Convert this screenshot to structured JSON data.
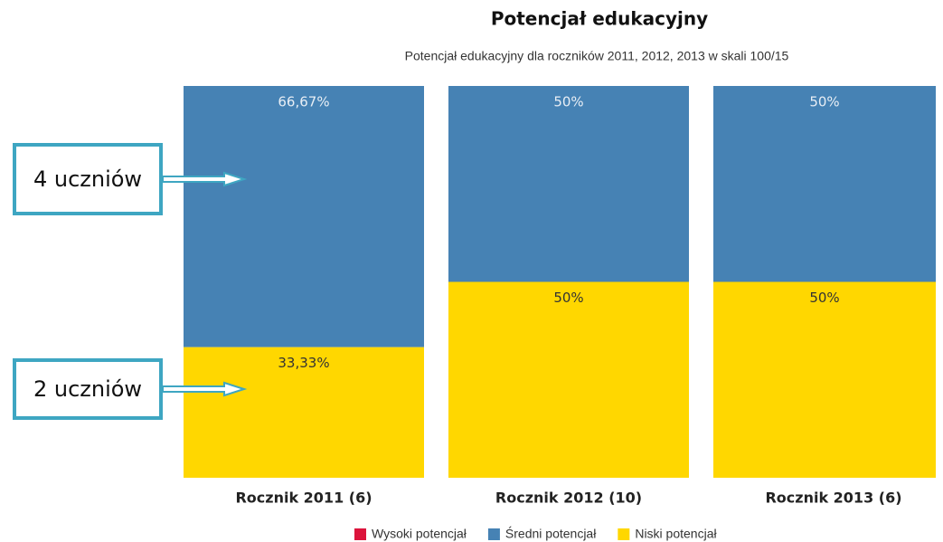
{
  "chart_data": {
    "type": "stacked_bar_100",
    "title": "Potencjał edukacyjny",
    "subtitle": "Potencjał edukacyjny dla roczników 2011, 2012, 2013 w skali 100/15",
    "categories": [
      "Rocznik 2011 (6)",
      "Rocznik 2012 (10)",
      "Rocznik 2013 (6)"
    ],
    "series": [
      {
        "name": "Wysoki potencjał",
        "color": "#dc143c",
        "values": [
          0,
          0,
          0
        ]
      },
      {
        "name": "Średni potencjał",
        "color": "#4682b4",
        "values": [
          66.67,
          50,
          50
        ],
        "value_labels": [
          "66,67%",
          "50%",
          "50%"
        ]
      },
      {
        "name": "Niski potencjał",
        "color": "#ffd700",
        "values": [
          33.33,
          50,
          50
        ],
        "value_labels": [
          "33,33%",
          "50%",
          "50%"
        ]
      }
    ],
    "annotations": [
      "4 uczniów",
      "2 uczniów"
    ]
  }
}
